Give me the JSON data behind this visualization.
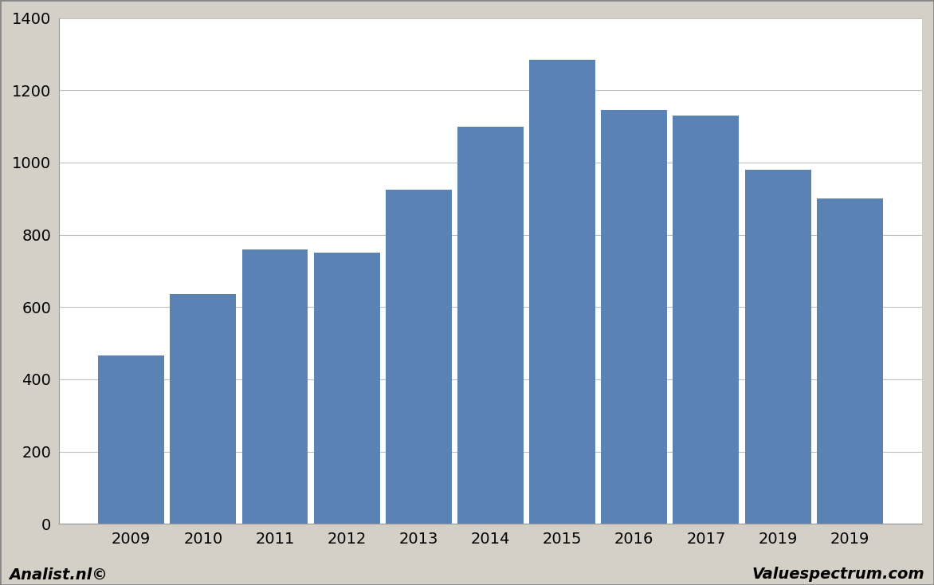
{
  "categories": [
    "2009",
    "2010",
    "2011",
    "2012",
    "2013",
    "2014",
    "2015",
    "2016",
    "2017",
    "2019",
    "2019"
  ],
  "values": [
    465,
    635,
    760,
    750,
    925,
    1100,
    1285,
    1145,
    1130,
    980,
    900
  ],
  "bar_color": "#5b82b5",
  "ylim": [
    0,
    1400
  ],
  "yticks": [
    0,
    200,
    400,
    600,
    800,
    1000,
    1200,
    1400
  ],
  "background_color": "#d4d0c8",
  "plot_bg_color": "#ffffff",
  "grid_color": "#c0c0c0",
  "footer_left": "Analist.nl©",
  "footer_right": "Valuespectrum.com",
  "footer_fontsize": 14,
  "bar_width": 0.92,
  "spine_color": "#999999",
  "tick_fontsize": 14
}
